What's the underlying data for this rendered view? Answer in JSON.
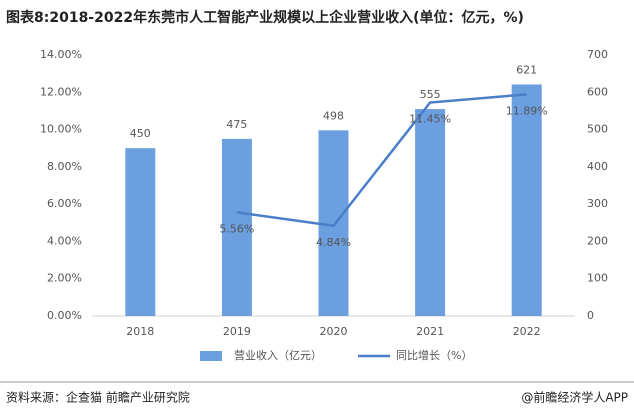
{
  "chart_data": {
    "type": "combo",
    "title": "图表8:2018-2022年东莞市人工智能产业规模以上企业营业收入(单位：亿元，%)",
    "categories": [
      "2018",
      "2019",
      "2020",
      "2021",
      "2022"
    ],
    "series": [
      {
        "name": "营业收入（亿元）",
        "type": "bar",
        "axis": "y2",
        "color": "#6b9fe0",
        "values": [
          450,
          475,
          498,
          555,
          621
        ]
      },
      {
        "name": "同比增长（%）",
        "type": "line",
        "color": "#4a7fc8",
        "values": [
          null,
          5.56,
          4.84,
          11.45,
          11.89
        ],
        "value_labels": [
          null,
          "5.56%",
          "4.84%",
          "11.45%",
          "11.89%"
        ]
      }
    ],
    "ylim": [
      0,
      14
    ],
    "yticks": [
      {
        "value": 0,
        "label": "0.00%"
      },
      {
        "value": 2,
        "label": "2.00%"
      },
      {
        "value": 4,
        "label": "4.00%"
      },
      {
        "value": 6,
        "label": "6.00%"
      },
      {
        "value": 8,
        "label": "8.00%"
      },
      {
        "value": 10,
        "label": "10.00%"
      },
      {
        "value": 12,
        "label": "12.00%"
      },
      {
        "value": 14,
        "label": "14.00%"
      }
    ],
    "y2lim": [
      0,
      700
    ],
    "y2ticks": [
      0,
      100,
      200,
      300,
      400,
      500,
      600,
      700
    ],
    "grid": false,
    "legend": "bottom"
  },
  "footer": {
    "source": "资料来源：企查猫 前瞻产业研究院",
    "credit": "@前瞻经济学人APP"
  }
}
